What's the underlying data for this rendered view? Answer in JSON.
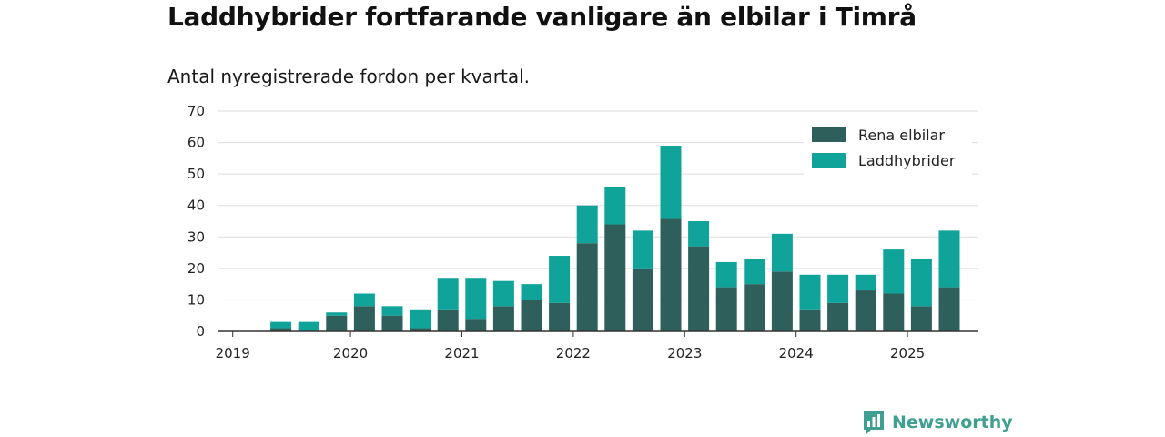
{
  "title": "Laddhybrider fortfarande vanligare än elbilar i Timrå",
  "subtitle": "Antal nyregistrerade fordon per kvartal.",
  "brand": "Newsworthy",
  "colors": {
    "elbil": "#2f5f5a",
    "hybrid": "#0fa39a",
    "grid": "#dddddd",
    "axis": "#333333",
    "brand": "#3fa092"
  },
  "chart_data": {
    "type": "bar",
    "stacked": true,
    "x": [
      "2019Q1",
      "2019Q2",
      "2019Q3",
      "2019Q4",
      "2020Q1",
      "2020Q2",
      "2020Q3",
      "2020Q4",
      "2021Q1",
      "2021Q2",
      "2021Q3",
      "2021Q4",
      "2022Q1",
      "2022Q2",
      "2022Q3",
      "2022Q4",
      "2023Q1",
      "2023Q2",
      "2023Q3",
      "2023Q4",
      "2024Q1",
      "2024Q2",
      "2024Q3",
      "2024Q4",
      "2025Q1",
      "2025Q2"
    ],
    "xticks": [
      "2019",
      "2020",
      "2021",
      "2022",
      "2023",
      "2024",
      "2025"
    ],
    "yticks": [
      0,
      10,
      20,
      30,
      40,
      50,
      60,
      70
    ],
    "ylim": [
      0,
      70
    ],
    "grid": true,
    "legend_position": "top-right",
    "series": [
      {
        "name": "Rena elbilar",
        "color": "#2f5f5a",
        "values": [
          0,
          1,
          0,
          5,
          8,
          5,
          1,
          7,
          4,
          8,
          10,
          9,
          28,
          34,
          20,
          36,
          27,
          14,
          15,
          19,
          7,
          9,
          13,
          12,
          8,
          14
        ]
      },
      {
        "name": "Laddhybrider",
        "color": "#0fa39a",
        "values": [
          0,
          2,
          3,
          1,
          4,
          3,
          6,
          10,
          13,
          8,
          5,
          15,
          12,
          12,
          12,
          23,
          8,
          8,
          8,
          12,
          11,
          9,
          5,
          14,
          15,
          18
        ]
      }
    ]
  }
}
